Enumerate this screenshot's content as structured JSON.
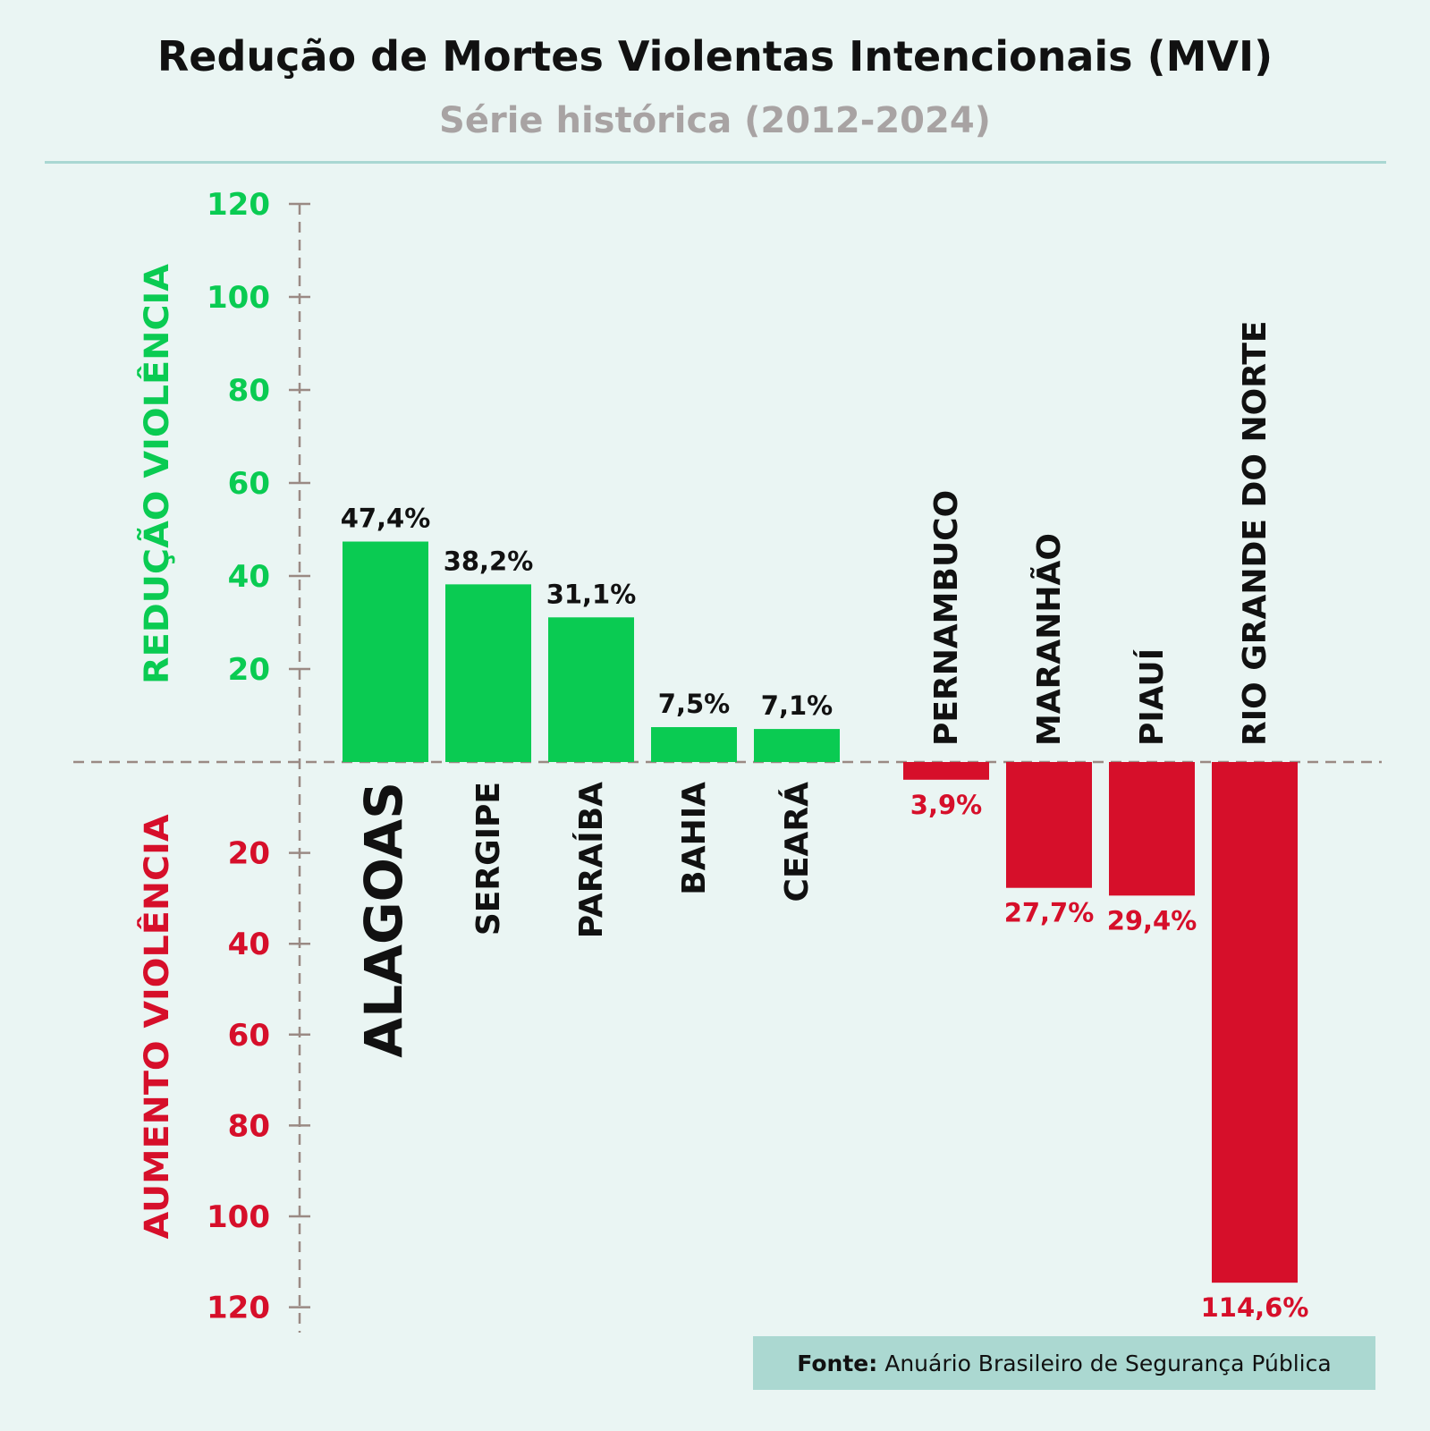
{
  "title": "Redução de Mortes Violentas Intencionais (MVI)",
  "subtitle": "Série histórica (2012-2024)",
  "source": {
    "label": "Fonte:",
    "text": "Anuário Brasileiro de Segurança Pública"
  },
  "colors": {
    "positive": "#0acb52",
    "negative": "#d60f2a",
    "axis": "#9a8a84",
    "text": "#111111"
  },
  "chart_data": {
    "type": "bar",
    "title": "Redução de Mortes Violentas Intencionais (MVI)",
    "subtitle": "Série histórica (2012-2024)",
    "axis_label_positive": "REDUÇÃO VIOLÊNCIA",
    "axis_label_negative": "AUMENTO VIOLÊNCIA",
    "ylim": [
      -120,
      120
    ],
    "ticks_positive": [
      "20",
      "40",
      "60",
      "80",
      "100",
      "120"
    ],
    "ticks_negative": [
      "20",
      "40",
      "60",
      "80",
      "100",
      "120"
    ],
    "categories": [
      "ALAGOAS",
      "SERGIPE",
      "PARAÍBA",
      "BAHIA",
      "CEARÁ",
      "PERNAMBUCO",
      "MARANHÃO",
      "PIAUÍ",
      "RIO GRANDE DO NORTE"
    ],
    "values": [
      47.4,
      38.2,
      31.1,
      7.5,
      7.1,
      -3.9,
      -27.7,
      -29.4,
      -114.6
    ],
    "labels": [
      "47,4%",
      "38,2%",
      "31,1%",
      "7,5%",
      "7,1%",
      "3,9%",
      "27,7%",
      "29,4%",
      "114,6%"
    ]
  }
}
